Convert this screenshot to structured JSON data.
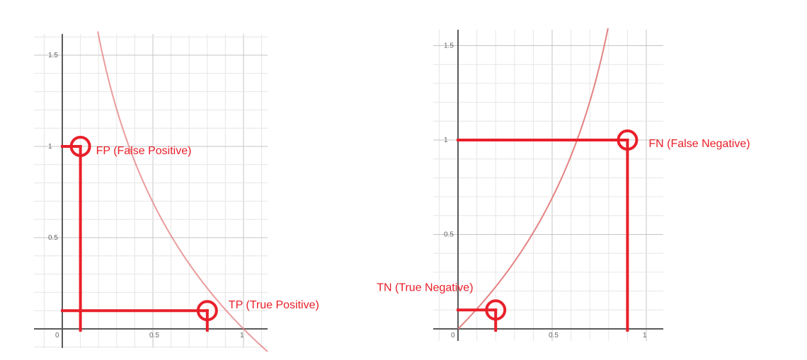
{
  "chart_data": [
    {
      "type": "line",
      "function": "y = -log(x)",
      "xlim": [
        -0.02,
        1.15
      ],
      "ylim": [
        -0.1,
        1.6
      ],
      "x_ticks": [
        {
          "value": 0,
          "label": "0"
        },
        {
          "value": 0.5,
          "label": "0.5"
        },
        {
          "value": 1,
          "label": "1"
        }
      ],
      "y_ticks": [
        {
          "value": 0.5,
          "label": "0.5"
        },
        {
          "value": 1,
          "label": "1"
        },
        {
          "value": 1.5,
          "label": "1.5"
        }
      ],
      "grid": true,
      "curve_color": "#e37b7b",
      "annotations": [
        {
          "label": "FP (False Positive)",
          "x": 0.1,
          "y": 1.0
        },
        {
          "label": "TP (True Positive)",
          "x": 0.8,
          "y": 0.1
        }
      ]
    },
    {
      "type": "line",
      "function": "y = -log(1 - x)",
      "xlim": [
        -0.02,
        1.15
      ],
      "ylim": [
        -0.05,
        1.6
      ],
      "x_ticks": [
        {
          "value": 0,
          "label": "0"
        },
        {
          "value": 0.5,
          "label": "0.5"
        },
        {
          "value": 1,
          "label": "1"
        }
      ],
      "y_ticks": [
        {
          "value": 0.5,
          "label": "0.5"
        },
        {
          "value": 1,
          "label": "1"
        },
        {
          "value": 1.5,
          "label": "1.5"
        }
      ],
      "grid": true,
      "curve_color": "#e37b7b",
      "annotations": [
        {
          "label": "FN (False Negative)",
          "x": 0.9,
          "y": 1.0
        },
        {
          "label": "TN (True Negative)",
          "x": 0.2,
          "y": 0.1
        }
      ]
    }
  ],
  "colors": {
    "annotation": "#e8202a",
    "axis": "#5a5a5a",
    "grid": "#e6e6e6"
  }
}
